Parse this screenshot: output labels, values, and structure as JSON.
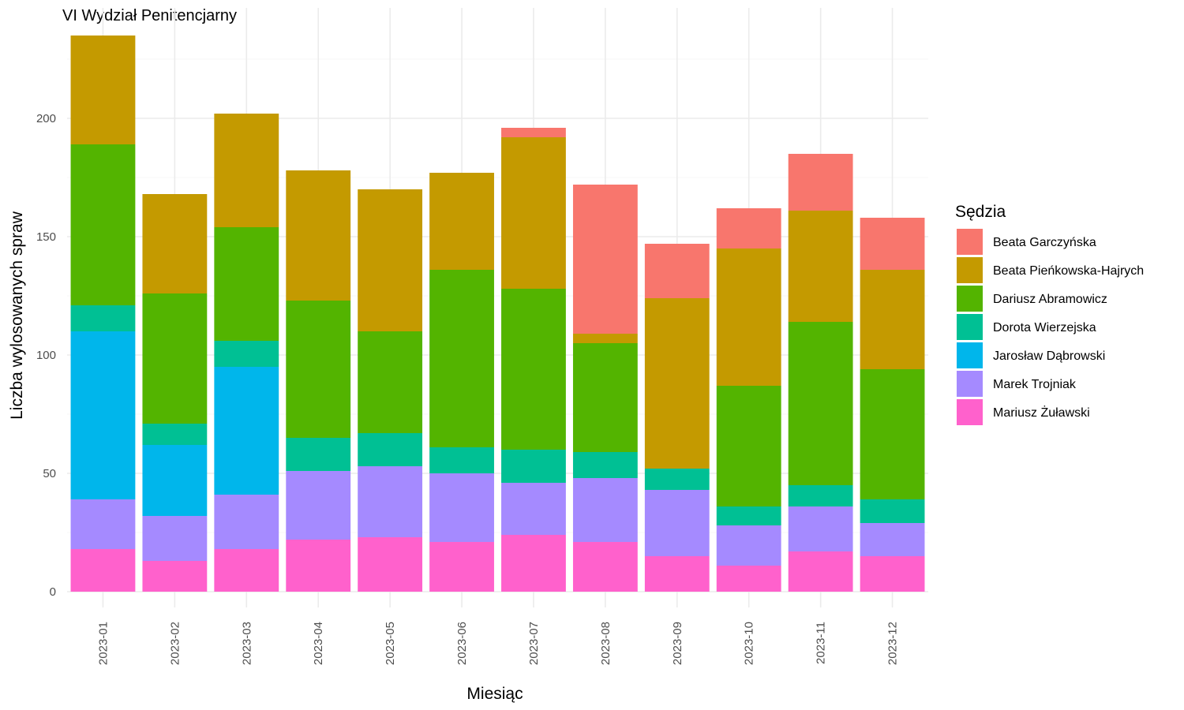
{
  "chart_data": {
    "type": "bar",
    "stacked": true,
    "title": "VI Wydział Penitencjarny",
    "xlabel": "Miesiąc",
    "ylabel": "Liczba wylosowanych spraw",
    "ylim": [
      0,
      240
    ],
    "yticks": [
      0,
      50,
      100,
      150,
      200
    ],
    "grid": true,
    "legend_title": "Sędzia",
    "legend_position": "right",
    "categories": [
      "2023-01",
      "2023-02",
      "2023-03",
      "2023-04",
      "2023-05",
      "2023-06",
      "2023-07",
      "2023-08",
      "2023-09",
      "2023-10",
      "2023-11",
      "2023-12"
    ],
    "series": [
      {
        "name": "Mariusz Żuławski",
        "color": "#FF61CC",
        "values": [
          18,
          13,
          18,
          22,
          23,
          21,
          24,
          21,
          15,
          11,
          17,
          15
        ]
      },
      {
        "name": "Marek Trojniak",
        "color": "#A58AFF",
        "values": [
          21,
          19,
          23,
          29,
          30,
          29,
          22,
          27,
          28,
          17,
          19,
          14
        ]
      },
      {
        "name": "Jarosław Dąbrowski",
        "color": "#00B6EB",
        "values": [
          71,
          30,
          54,
          0,
          0,
          0,
          0,
          0,
          0,
          0,
          0,
          0
        ]
      },
      {
        "name": "Dorota Wierzejska",
        "color": "#00C094",
        "values": [
          11,
          9,
          11,
          14,
          14,
          11,
          14,
          11,
          9,
          8,
          9,
          10
        ]
      },
      {
        "name": "Dariusz Abramowicz",
        "color": "#53B400",
        "values": [
          68,
          55,
          48,
          58,
          43,
          75,
          68,
          46,
          0,
          51,
          69,
          55
        ]
      },
      {
        "name": "Beata Pieńkowska-Hajrych",
        "color": "#C49A00",
        "values": [
          46,
          42,
          48,
          55,
          60,
          41,
          64,
          4,
          72,
          58,
          47,
          42
        ]
      },
      {
        "name": "Beata Garczyńska",
        "color": "#F8766D",
        "values": [
          0,
          0,
          0,
          0,
          0,
          0,
          4,
          63,
          23,
          17,
          24,
          22
        ]
      }
    ],
    "legend_order": [
      "Beata Garczyńska",
      "Beata Pieńkowska-Hajrych",
      "Dariusz Abramowicz",
      "Dorota Wierzejska",
      "Jarosław Dąbrowski",
      "Marek Trojniak",
      "Mariusz Żuławski"
    ]
  }
}
